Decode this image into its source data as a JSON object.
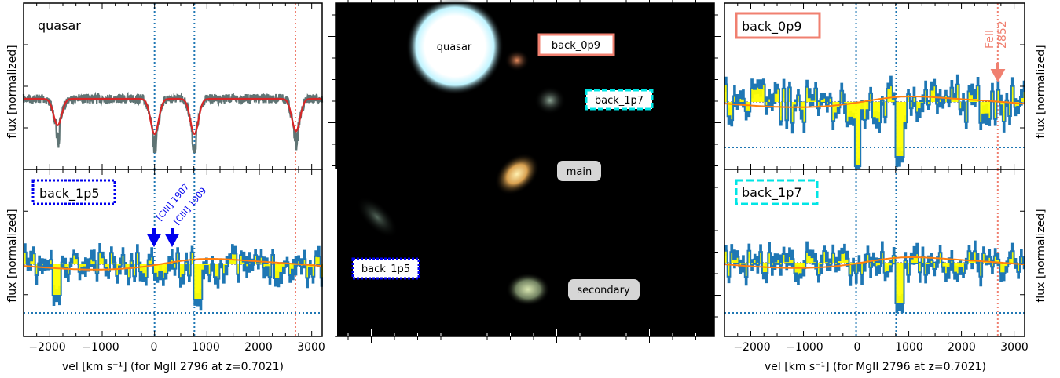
{
  "chart_data": [
    {
      "type": "line",
      "panel": "left-top",
      "label": "quasar",
      "xlim": [
        -2500,
        3200
      ],
      "ylabel": "flux [normalized]",
      "markers": {
        "line1": 0,
        "line2": 760,
        "feII": 2690
      },
      "series": [
        {
          "name": "",
          "kind": "observed",
          "color": "#5f7474"
        },
        {
          "name": "",
          "kind": "model",
          "color": "#d62728"
        }
      ],
      "absorptions": [
        {
          "x": -1850,
          "depth": 0.45
        },
        {
          "x": 0,
          "depth": 0.6
        },
        {
          "x": 760,
          "depth": 0.6
        },
        {
          "x": 2700,
          "depth": 0.55
        }
      ]
    },
    {
      "type": "line",
      "panel": "left-bottom",
      "label": "back_1p5",
      "xlim": [
        -2500,
        3200
      ],
      "xlabel": "vel [km s⁻¹] (for MgII 2796 at z=0.7021)",
      "ylabel": "flux [normalized]",
      "xticks": [
        "−2000",
        "−1000",
        "0",
        "1000",
        "2000",
        "3000"
      ],
      "annotations": [
        "[CIII] 1907",
        "[CIII] 1909"
      ]
    },
    {
      "type": "image",
      "panel": "center",
      "labels": [
        "quasar",
        "back_0p9",
        "back_1p7",
        "main",
        "back_1p5",
        "secondary"
      ]
    },
    {
      "type": "line",
      "panel": "right-top",
      "label": "back_0p9",
      "xlim": [
        -2500,
        3200
      ],
      "ylabel": "flux [normalized]",
      "annotations": [
        "FeII 2852"
      ]
    },
    {
      "type": "line",
      "panel": "right-bottom",
      "label": "back_1p7",
      "xlim": [
        -2500,
        3200
      ],
      "xlabel": "vel [km s⁻¹] (for MgII 2796 at z=0.7021)",
      "ylabel": "flux [normalized]",
      "xticks": [
        "−2000",
        "−1000",
        "0",
        "1000",
        "2000",
        "3000"
      ]
    }
  ],
  "labels": {
    "quasar_panel": "quasar",
    "back_1p5_panel": "back_1p5",
    "back_0p9_panel": "back_0p9",
    "back_1p7_panel": "back_1p7",
    "ciii1907": "[CIII] 1907",
    "ciii1909": "[CIII] 1909",
    "feii_a": "FeII",
    "feii_b": "2852",
    "img_quasar": "quasar",
    "img_back_0p9": "back_0p9",
    "img_back_1p7": "back_1p7",
    "img_main": "main",
    "img_back_1p5": "back_1p5",
    "img_secondary": "secondary",
    "ylabel": "flux [normalized]",
    "xlabel": "vel [km s⁻¹] (for MgII 2796 at z=0.7021)",
    "xticks": [
      "−2000",
      "−1000",
      "0",
      "1000",
      "2000",
      "3000"
    ]
  },
  "colors": {
    "quasar_obs": "#5f7474",
    "quasar_model": "#d62728",
    "spectrum_fill": "#ffff00",
    "spectrum_error": "#1f77b4",
    "model_orange": "#ff7f0e",
    "dotted_blue": "#1f77b4",
    "dotted_salmon": "#f08070",
    "box_salmon": "#f08070",
    "box_cyan": "#00e5e5",
    "box_blue": "#0000ee"
  }
}
